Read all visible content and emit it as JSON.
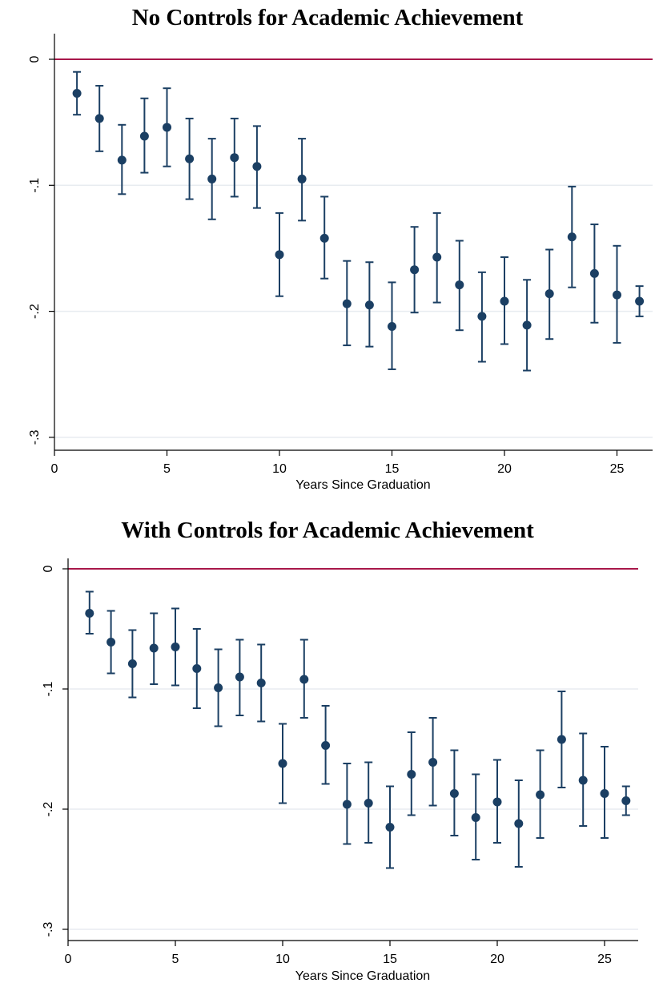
{
  "chart_data": [
    {
      "type": "scatter",
      "title": "No Controls for Academic Achievement",
      "xlabel": "Years Since Graduation",
      "ylabel": "",
      "xlim": [
        0,
        26.5
      ],
      "ylim": [
        -0.31,
        0.02
      ],
      "xticks": [
        0,
        5,
        10,
        15,
        20,
        25
      ],
      "xtick_labels": [
        "0",
        "5",
        "10",
        "15",
        "20",
        "25"
      ],
      "yticks": [
        0,
        -0.1,
        -0.2,
        -0.3
      ],
      "ytick_labels": [
        "0",
        "-.1",
        "-.2",
        "-.3"
      ],
      "grid": true,
      "reference_line": 0,
      "colors": {
        "reference_line": "#a8184a",
        "points": "#1b3f63",
        "grid": "#e8ecf0"
      },
      "series": [
        {
          "x": [
            1,
            2,
            3,
            4,
            5,
            6,
            7,
            8,
            9,
            10,
            11,
            12,
            13,
            14,
            15,
            16,
            17,
            18,
            19,
            20,
            21,
            22,
            23,
            24,
            25,
            26
          ],
          "y": [
            -0.027,
            -0.047,
            -0.08,
            -0.061,
            -0.054,
            -0.079,
            -0.095,
            -0.078,
            -0.085,
            -0.155,
            -0.095,
            -0.142,
            -0.194,
            -0.195,
            -0.212,
            -0.167,
            -0.157,
            -0.179,
            -0.204,
            -0.192,
            -0.211,
            -0.186,
            -0.141,
            -0.17,
            -0.187,
            -0.192
          ],
          "ci_low": [
            -0.044,
            -0.073,
            -0.107,
            -0.09,
            -0.085,
            -0.111,
            -0.127,
            -0.109,
            -0.118,
            -0.188,
            -0.128,
            -0.174,
            -0.227,
            -0.228,
            -0.246,
            -0.201,
            -0.193,
            -0.215,
            -0.24,
            -0.226,
            -0.247,
            -0.222,
            -0.181,
            -0.209,
            -0.225,
            -0.204
          ],
          "ci_high": [
            -0.01,
            -0.021,
            -0.052,
            -0.031,
            -0.023,
            -0.047,
            -0.063,
            -0.047,
            -0.053,
            -0.122,
            -0.063,
            -0.109,
            -0.16,
            -0.161,
            -0.177,
            -0.133,
            -0.122,
            -0.144,
            -0.169,
            -0.157,
            -0.175,
            -0.151,
            -0.101,
            -0.131,
            -0.148,
            -0.18
          ]
        }
      ]
    },
    {
      "type": "scatter",
      "title": "With Controls for Academic Achievement",
      "xlabel": "Years Since Graduation",
      "ylabel": "",
      "xlim": [
        0,
        26.5
      ],
      "ylim": [
        -0.31,
        0.01
      ],
      "xticks": [
        0,
        5,
        10,
        15,
        20,
        25
      ],
      "xtick_labels": [
        "0",
        "5",
        "10",
        "15",
        "20",
        "25"
      ],
      "yticks": [
        0,
        -0.1,
        -0.2,
        -0.3
      ],
      "ytick_labels": [
        "0",
        "-.1",
        "-.2",
        "-.3"
      ],
      "grid": true,
      "reference_line": 0,
      "colors": {
        "reference_line": "#a8184a",
        "points": "#1b3f63",
        "grid": "#e8ecf0"
      },
      "series": [
        {
          "x": [
            1,
            2,
            3,
            4,
            5,
            6,
            7,
            8,
            9,
            10,
            11,
            12,
            13,
            14,
            15,
            16,
            17,
            18,
            19,
            20,
            21,
            22,
            23,
            24,
            25,
            26
          ],
          "y": [
            -0.037,
            -0.061,
            -0.079,
            -0.066,
            -0.065,
            -0.083,
            -0.099,
            -0.09,
            -0.095,
            -0.162,
            -0.092,
            -0.147,
            -0.196,
            -0.195,
            -0.215,
            -0.171,
            -0.161,
            -0.187,
            -0.207,
            -0.194,
            -0.212,
            -0.188,
            -0.142,
            -0.176,
            -0.187,
            -0.193
          ],
          "ci_low": [
            -0.054,
            -0.087,
            -0.107,
            -0.096,
            -0.097,
            -0.116,
            -0.131,
            -0.122,
            -0.127,
            -0.195,
            -0.124,
            -0.179,
            -0.229,
            -0.228,
            -0.249,
            -0.205,
            -0.197,
            -0.222,
            -0.242,
            -0.228,
            -0.248,
            -0.224,
            -0.182,
            -0.214,
            -0.224,
            -0.205
          ],
          "ci_high": [
            -0.019,
            -0.035,
            -0.051,
            -0.037,
            -0.033,
            -0.05,
            -0.067,
            -0.059,
            -0.063,
            -0.129,
            -0.059,
            -0.114,
            -0.162,
            -0.161,
            -0.181,
            -0.136,
            -0.124,
            -0.151,
            -0.171,
            -0.159,
            -0.176,
            -0.151,
            -0.102,
            -0.137,
            -0.148,
            -0.181
          ]
        }
      ]
    }
  ]
}
